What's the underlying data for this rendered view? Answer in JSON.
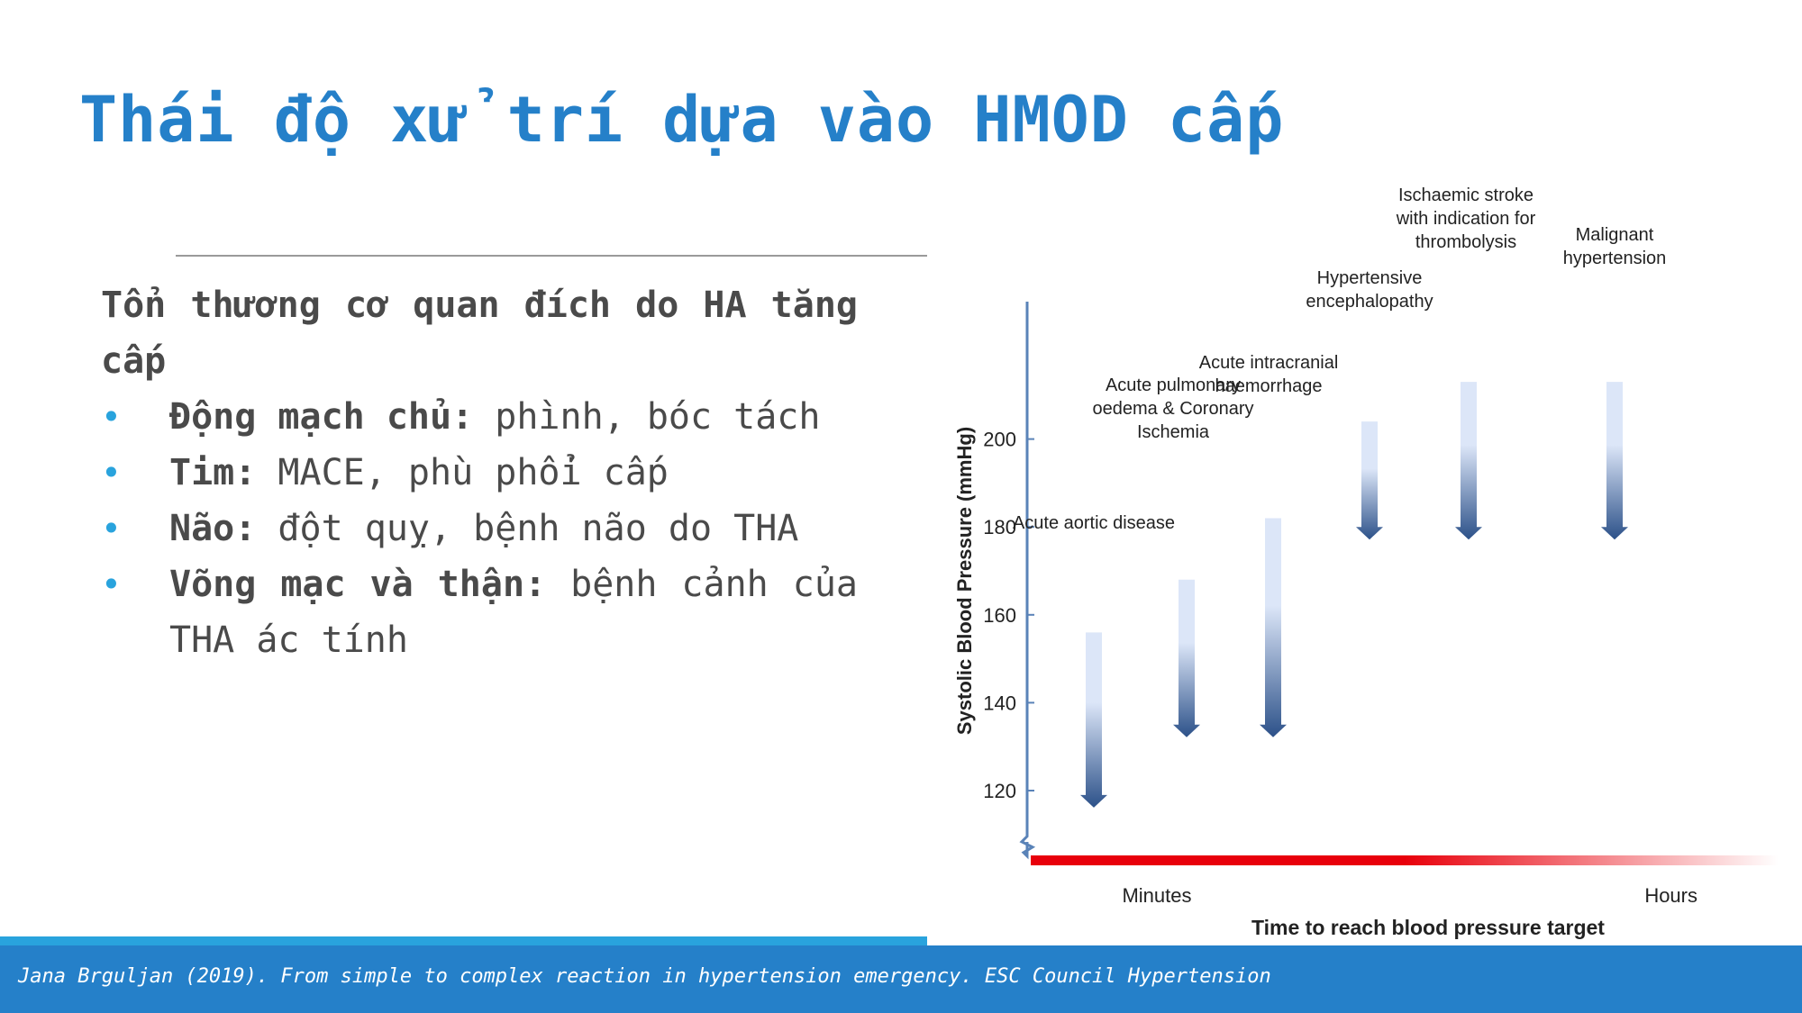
{
  "slide": {
    "title": "Thái độ xử trí dựa vào HMOD cấp",
    "heading": "Tổn thương cơ quan đích do HA tăng cấp",
    "bullets": [
      {
        "key": "Động mạch chủ:",
        "text": " phình, bóc tách"
      },
      {
        "key": "Tim:",
        "text": " MACE, phù phổi cấp"
      },
      {
        "key": "Não:",
        "text": " đột quỵ, bệnh não do THA"
      },
      {
        "key": "Võng mạc và thận:",
        "text": " bệnh cảnh của THA ác tính"
      }
    ],
    "citation": "Jana Brguljan (2019). From simple to complex reaction in hypertension emergency. ESC Council Hypertension"
  },
  "colors": {
    "title": "#2580c9",
    "bullet": "#29a3dd",
    "footer": "#2580c9",
    "arrow_dark": "#2c5189",
    "arrow_light": "#dce6f8",
    "time_bar": "#e8000b"
  },
  "chart_data": {
    "type": "arrow-range",
    "xlabel": "Time to reach blood pressure target",
    "ylabel": "Systolic Blood Pressure (mmHg)",
    "x_ticks": [
      "Minutes",
      "Hours"
    ],
    "y_ticks": [
      120,
      140,
      160,
      180,
      200
    ],
    "ylim": [
      110,
      208
    ],
    "axis_break": true,
    "series": [
      {
        "name": "Acute aortic disease",
        "from": 156,
        "to": 119
      },
      {
        "name": "Acute pulmonary oedema & Coronary Ischemia",
        "from": 168,
        "to": 135
      },
      {
        "name": "Acute intracranial haemorrhage",
        "from": 182,
        "to": 135
      },
      {
        "name": "Hypertensive encephalopathy",
        "from": 204,
        "to": 180
      },
      {
        "name": "Ischaemic stroke with indication for thrombolysis",
        "from": 213,
        "to": 180
      },
      {
        "name": "Malignant hypertension",
        "from": 213,
        "to": 180
      }
    ]
  }
}
